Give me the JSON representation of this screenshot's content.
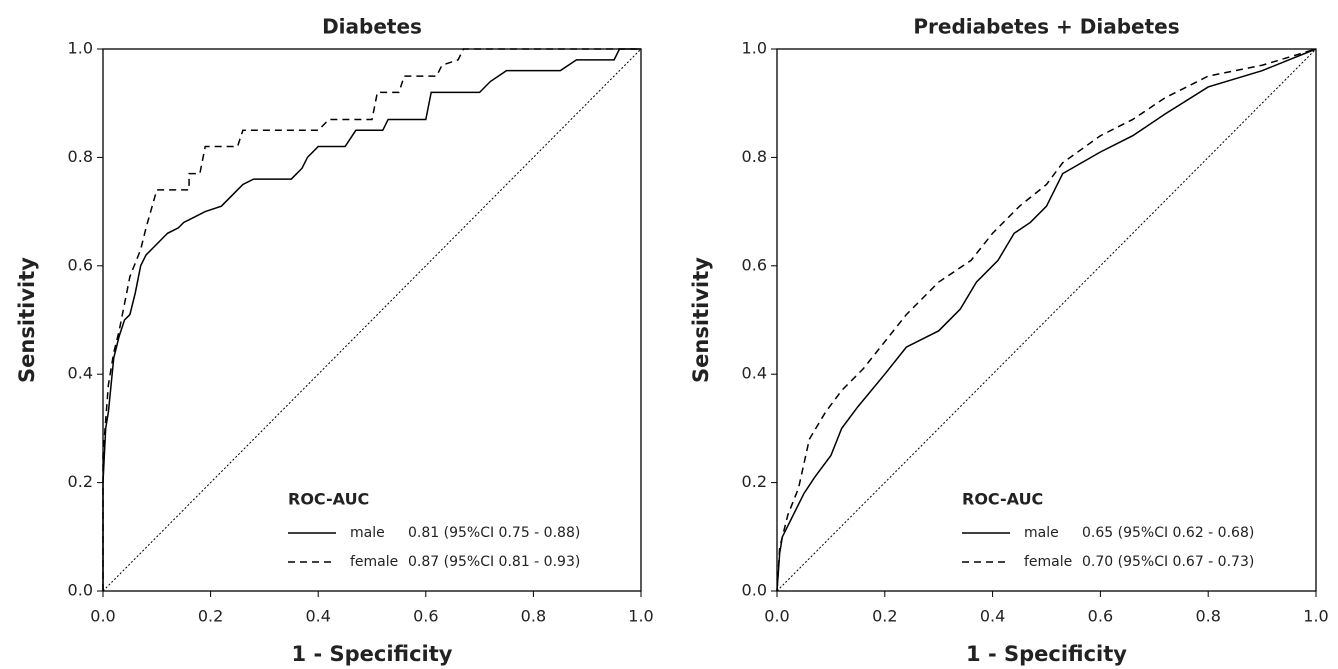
{
  "chart_data": [
    {
      "type": "line",
      "title": "Diabetes",
      "xlabel": "1 - Specificity",
      "ylabel": "Sensitivity",
      "xlim": [
        0,
        1
      ],
      "ylim": [
        0,
        1
      ],
      "xticks": [
        {
          "value": 0,
          "label": "0.0"
        },
        0.2,
        0.4,
        0.6,
        0.8,
        {
          "value": 1,
          "label": "1.0"
        }
      ],
      "yticks": [
        {
          "value": 0,
          "label": "0.0"
        },
        0.2,
        0.4,
        0.6,
        0.8,
        {
          "value": 1,
          "label": "1.0"
        }
      ],
      "legend_title": "ROC-AUC",
      "legend": "lower right",
      "series": [
        {
          "name": "male",
          "auc": "0.81 (95%CI 0.75 - 0.88)",
          "color": "#000000",
          "linestyle": "solid",
          "x": [
            0,
            0,
            0.005,
            0.01,
            0.015,
            0.02,
            0.03,
            0.04,
            0.05,
            0.06,
            0.07,
            0.08,
            0.1,
            0.12,
            0.14,
            0.15,
            0.17,
            0.19,
            0.22,
            0.24,
            0.26,
            0.28,
            0.35,
            0.37,
            0.38,
            0.4,
            0.45,
            0.47,
            0.52,
            0.53,
            0.6,
            0.61,
            0.7,
            0.72,
            0.75,
            0.85,
            0.88,
            0.95,
            0.96,
            1
          ],
          "values": [
            0,
            0.2,
            0.3,
            0.33,
            0.38,
            0.43,
            0.47,
            0.5,
            0.51,
            0.55,
            0.6,
            0.62,
            0.64,
            0.66,
            0.67,
            0.68,
            0.69,
            0.7,
            0.71,
            0.73,
            0.75,
            0.76,
            0.76,
            0.78,
            0.8,
            0.82,
            0.82,
            0.85,
            0.85,
            0.87,
            0.87,
            0.92,
            0.92,
            0.94,
            0.96,
            0.96,
            0.98,
            0.98,
            1,
            1
          ]
        },
        {
          "name": "female",
          "auc": "0.87 (95%CI 0.81 - 0.93)",
          "color": "#000000",
          "linestyle": "dashed",
          "x": [
            0,
            0,
            0.01,
            0.02,
            0.03,
            0.04,
            0.05,
            0.07,
            0.08,
            0.1,
            0.16,
            0.16,
            0.18,
            0.19,
            0.25,
            0.26,
            0.4,
            0.42,
            0.5,
            0.51,
            0.55,
            0.56,
            0.62,
            0.63,
            0.66,
            0.67,
            1
          ],
          "values": [
            0,
            0.25,
            0.38,
            0.44,
            0.48,
            0.53,
            0.58,
            0.63,
            0.67,
            0.74,
            0.74,
            0.77,
            0.77,
            0.82,
            0.82,
            0.85,
            0.85,
            0.87,
            0.87,
            0.92,
            0.92,
            0.95,
            0.95,
            0.97,
            0.98,
            1,
            1
          ]
        }
      ]
    },
    {
      "type": "line",
      "title": "Prediabetes + Diabetes",
      "xlabel": "1 - Specificity",
      "ylabel": "Sensitivity",
      "xlim": [
        0,
        1
      ],
      "ylim": [
        0,
        1
      ],
      "xticks": [
        {
          "value": 0,
          "label": "0.0"
        },
        0.2,
        0.4,
        0.6,
        0.8,
        {
          "value": 1,
          "label": "1.0"
        }
      ],
      "yticks": [
        {
          "value": 0,
          "label": "0.0"
        },
        0.2,
        0.4,
        0.6,
        0.8,
        {
          "value": 1,
          "label": "1.0"
        }
      ],
      "legend_title": "ROC-AUC",
      "legend": "lower right",
      "series": [
        {
          "name": "male",
          "auc": "0.65 (95%CI 0.62 - 0.68)",
          "color": "#000000",
          "linestyle": "solid",
          "x": [
            0,
            0.005,
            0.01,
            0.03,
            0.05,
            0.07,
            0.1,
            0.12,
            0.15,
            0.2,
            0.24,
            0.3,
            0.34,
            0.37,
            0.41,
            0.44,
            0.47,
            0.5,
            0.53,
            0.6,
            0.66,
            0.72,
            0.8,
            0.9,
            0.95,
            1
          ],
          "values": [
            0,
            0.07,
            0.1,
            0.14,
            0.18,
            0.21,
            0.25,
            0.3,
            0.34,
            0.4,
            0.45,
            0.48,
            0.52,
            0.57,
            0.61,
            0.66,
            0.68,
            0.71,
            0.77,
            0.81,
            0.84,
            0.88,
            0.93,
            0.96,
            0.98,
            1
          ]
        },
        {
          "name": "female",
          "auc": "0.70 (95%CI 0.67 - 0.73)",
          "color": "#000000",
          "linestyle": "dashed",
          "x": [
            0,
            0.005,
            0.02,
            0.04,
            0.06,
            0.09,
            0.12,
            0.16,
            0.2,
            0.24,
            0.3,
            0.36,
            0.4,
            0.45,
            0.5,
            0.53,
            0.6,
            0.66,
            0.72,
            0.8,
            0.9,
            1
          ],
          "values": [
            0,
            0.08,
            0.14,
            0.19,
            0.28,
            0.33,
            0.37,
            0.41,
            0.46,
            0.51,
            0.57,
            0.61,
            0.66,
            0.71,
            0.75,
            0.79,
            0.84,
            0.87,
            0.91,
            0.95,
            0.97,
            1
          ]
        }
      ]
    }
  ]
}
